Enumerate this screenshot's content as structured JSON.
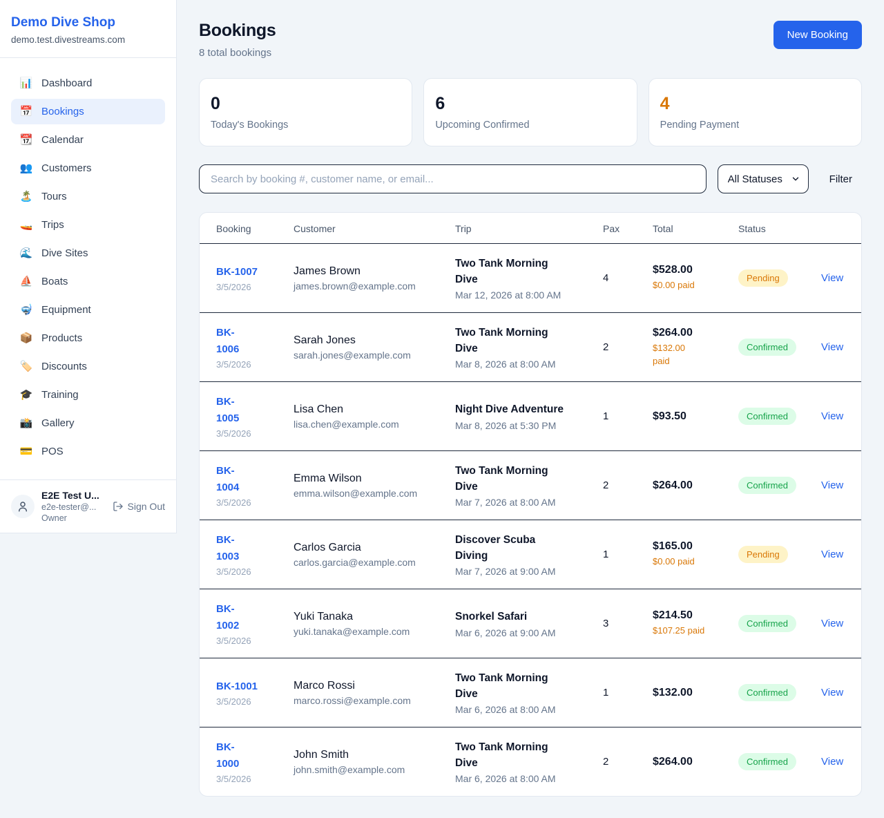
{
  "sidebar": {
    "brand": {
      "name": "Demo Dive Shop",
      "domain": "demo.test.divestreams.com"
    },
    "nav": [
      {
        "label": "Dashboard",
        "icon": "bar-chart-icon",
        "glyph": "📊",
        "active": false
      },
      {
        "label": "Bookings",
        "icon": "calendar-icon",
        "glyph": "📅",
        "active": true
      },
      {
        "label": "Calendar",
        "icon": "tear-off-calendar-icon",
        "glyph": "📆",
        "active": false
      },
      {
        "label": "Customers",
        "icon": "people-icon",
        "glyph": "👥",
        "active": false
      },
      {
        "label": "Tours",
        "icon": "island-icon",
        "glyph": "🏝️",
        "active": false
      },
      {
        "label": "Trips",
        "icon": "speedboat-icon",
        "glyph": "🚤",
        "active": false
      },
      {
        "label": "Dive Sites",
        "icon": "wave-icon",
        "glyph": "🌊",
        "active": false
      },
      {
        "label": "Boats",
        "icon": "sailboat-icon",
        "glyph": "⛵",
        "active": false
      },
      {
        "label": "Equipment",
        "icon": "diving-mask-icon",
        "glyph": "🤿",
        "active": false
      },
      {
        "label": "Products",
        "icon": "package-icon",
        "glyph": "📦",
        "active": false
      },
      {
        "label": "Discounts",
        "icon": "tag-icon",
        "glyph": "🏷️",
        "active": false
      },
      {
        "label": "Training",
        "icon": "graduation-cap-icon",
        "glyph": "🎓",
        "active": false
      },
      {
        "label": "Gallery",
        "icon": "camera-flash-icon",
        "glyph": "📸",
        "active": false
      },
      {
        "label": "POS",
        "icon": "credit-card-icon",
        "glyph": "💳",
        "active": false
      }
    ],
    "user": {
      "name": "E2E Test U...",
      "email": "e2e-tester@...",
      "role": "Owner",
      "sign_out_label": "Sign Out"
    }
  },
  "header": {
    "title": "Bookings",
    "subtitle": "8 total bookings",
    "new_booking_label": "New Booking"
  },
  "stats": [
    {
      "value": "0",
      "label": "Today's Bookings",
      "color": "#0f172a"
    },
    {
      "value": "6",
      "label": "Upcoming Confirmed",
      "color": "#0f172a"
    },
    {
      "value": "4",
      "label": "Pending Payment",
      "color": "#d97706"
    }
  ],
  "controls": {
    "search_placeholder": "Search by booking #, customer name, or email...",
    "status_filter_value": "All Statuses",
    "filter_label": "Filter"
  },
  "table": {
    "headers": [
      "Booking",
      "Customer",
      "Trip",
      "Pax",
      "Total",
      "Status",
      ""
    ],
    "view_label": "View",
    "rows": [
      {
        "number": "BK-1007",
        "number_two_line": false,
        "date": "3/5/2026",
        "customer": "James Brown",
        "email": "james.brown@example.com",
        "trip": "Two Tank Morning\nDive",
        "datetime": "Mar 12, 2026 at 8:00 AM",
        "pax": "4",
        "total": "$528.00",
        "paid": "$0.00 paid",
        "paid_two_line": false,
        "status": "Pending"
      },
      {
        "number": "BK-1006",
        "number_two_line": true,
        "date": "3/5/2026",
        "customer": "Sarah Jones",
        "email": "sarah.jones@example.com",
        "trip": "Two Tank Morning\nDive",
        "datetime": "Mar 8, 2026 at 8:00 AM",
        "pax": "2",
        "total": "$264.00",
        "paid": "$132.00 paid",
        "paid_two_line": true,
        "status": "Confirmed"
      },
      {
        "number": "BK-1005",
        "number_two_line": true,
        "date": "3/5/2026",
        "customer": "Lisa Chen",
        "email": "lisa.chen@example.com",
        "trip": "Night Dive Adventure",
        "datetime": "Mar 8, 2026 at 5:30 PM",
        "pax": "1",
        "total": "$93.50",
        "paid": null,
        "paid_two_line": false,
        "status": "Confirmed"
      },
      {
        "number": "BK-1004",
        "number_two_line": true,
        "date": "3/5/2026",
        "customer": "Emma Wilson",
        "email": "emma.wilson@example.com",
        "trip": "Two Tank Morning\nDive",
        "datetime": "Mar 7, 2026 at 8:00 AM",
        "pax": "2",
        "total": "$264.00",
        "paid": null,
        "paid_two_line": false,
        "status": "Confirmed"
      },
      {
        "number": "BK-1003",
        "number_two_line": true,
        "date": "3/5/2026",
        "customer": "Carlos Garcia",
        "email": "carlos.garcia@example.com",
        "trip": "Discover Scuba\nDiving",
        "datetime": "Mar 7, 2026 at 9:00 AM",
        "pax": "1",
        "total": "$165.00",
        "paid": "$0.00 paid",
        "paid_two_line": false,
        "status": "Pending"
      },
      {
        "number": "BK-1002",
        "number_two_line": true,
        "date": "3/5/2026",
        "customer": "Yuki Tanaka",
        "email": "yuki.tanaka@example.com",
        "trip": "Snorkel Safari",
        "datetime": "Mar 6, 2026 at 9:00 AM",
        "pax": "3",
        "total": "$214.50",
        "paid": "$107.25 paid",
        "paid_two_line": false,
        "status": "Confirmed"
      },
      {
        "number": "BK-1001",
        "number_two_line": false,
        "date": "3/5/2026",
        "customer": "Marco Rossi",
        "email": "marco.rossi@example.com",
        "trip": "Two Tank Morning\nDive",
        "datetime": "Mar 6, 2026 at 8:00 AM",
        "pax": "1",
        "total": "$132.00",
        "paid": null,
        "paid_two_line": false,
        "status": "Confirmed"
      },
      {
        "number": "BK-1000",
        "number_two_line": true,
        "date": "3/5/2026",
        "customer": "John Smith",
        "email": "john.smith@example.com",
        "trip": "Two Tank Morning\nDive",
        "datetime": "Mar 6, 2026 at 8:00 AM",
        "pax": "2",
        "total": "$264.00",
        "paid": null,
        "paid_two_line": false,
        "status": "Confirmed"
      }
    ]
  },
  "status_styles": {
    "Pending": {
      "text": "#d97706",
      "bg": "#fef3c7"
    },
    "Confirmed": {
      "text": "#16a34a",
      "bg": "#dcfce7"
    }
  },
  "colors": {
    "brand": "#2563eb",
    "link": "#2563eb",
    "paid": "#d97706",
    "row_divider": "#1e293b"
  }
}
